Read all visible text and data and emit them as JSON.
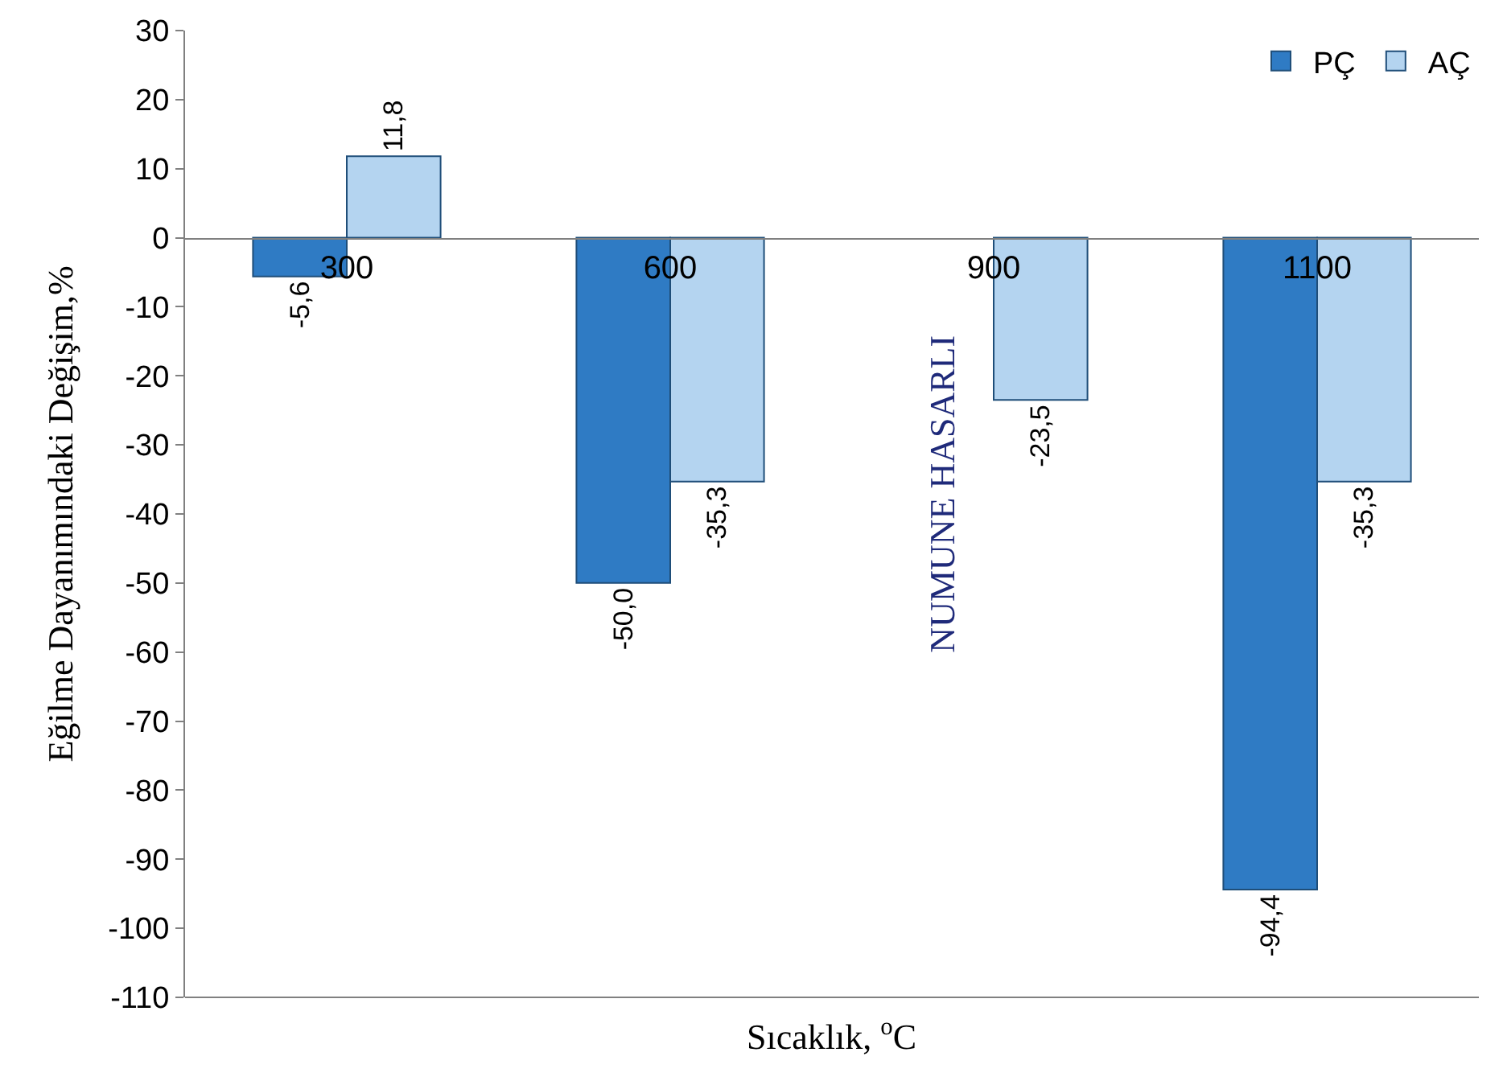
{
  "chart_data": {
    "type": "bar",
    "xlabel": "Sıcaklık, $^{o}$C",
    "ylabel": "Eğilme Dayanımındaki Değişim,%",
    "categories": [
      "300",
      "600",
      "900",
      "1100"
    ],
    "series": [
      {
        "name": "PÇ",
        "color": "#2f7bc4",
        "values": [
          -5.6,
          -50.0,
          null,
          -94.4
        ],
        "value_labels": [
          "-5,6",
          "-50,0",
          null,
          "-94,4"
        ]
      },
      {
        "name": "AÇ",
        "color": "#b4d4f0",
        "values": [
          11.8,
          -35.3,
          -23.5,
          -35.3
        ],
        "value_labels": [
          "11,8",
          "-35,3",
          "-23,5",
          "-35,3"
        ]
      }
    ],
    "annotations": [
      "NUMUNE HASARLI"
    ],
    "ylim": [
      -110,
      30
    ],
    "yticks": [
      30,
      20,
      10,
      0,
      -10,
      -20,
      -30,
      -40,
      -50,
      -60,
      -70,
      -80,
      -90,
      -100,
      -110
    ],
    "legend": "top right"
  }
}
